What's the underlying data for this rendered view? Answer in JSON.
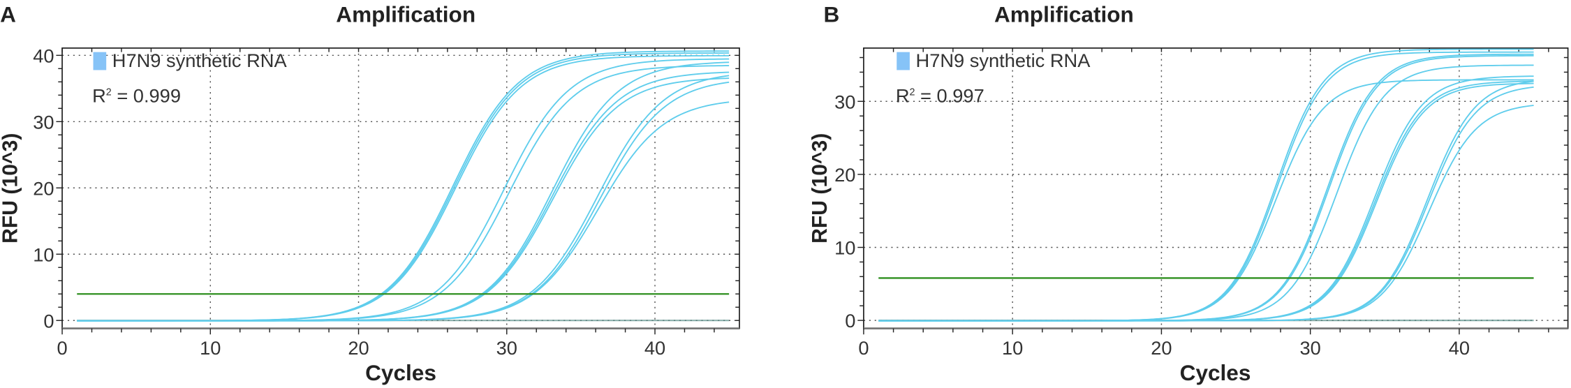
{
  "colors": {
    "curve": "#5fcdec",
    "threshold": "#2f8f1f",
    "legend_swatch": "#86c3f7",
    "baseline": "#5a8f8a",
    "grid": "#555555"
  },
  "chart_data": [
    {
      "type": "line",
      "panel_label": "A",
      "title": "Amplification",
      "xlabel": "Cycles",
      "ylabel": "RFU (10^3)",
      "xlim": [
        0,
        45.7
      ],
      "ylim": [
        -1.2,
        41.1
      ],
      "xticks": [
        0,
        10,
        20,
        30,
        40
      ],
      "yticks": [
        0,
        10,
        20,
        30,
        40
      ],
      "grid": true,
      "legend": {
        "label": "H7N9 synthetic RNA",
        "placement": "top-left"
      },
      "annotation": {
        "prefix": "R",
        "sup": "2",
        "text": " = 0.999"
      },
      "threshold": 4.0,
      "cycles": [
        1,
        45
      ],
      "series": [
        {
          "ct": 21.5,
          "end_rfu": 40.7
        },
        {
          "ct": 21.6,
          "end_rfu": 40.4
        },
        {
          "ct": 21.7,
          "end_rfu": 40.0
        },
        {
          "ct": 25.0,
          "end_rfu": 39.5
        },
        {
          "ct": 25.4,
          "end_rfu": 38.5
        },
        {
          "ct": 28.3,
          "end_rfu": 39.0
        },
        {
          "ct": 28.4,
          "end_rfu": 37.5
        },
        {
          "ct": 28.5,
          "end_rfu": 36.6
        },
        {
          "ct": 31.5,
          "end_rfu": 37.0
        },
        {
          "ct": 31.7,
          "end_rfu": 36.0
        },
        {
          "ct": 31.8,
          "end_rfu": 33.0
        }
      ]
    },
    {
      "type": "line",
      "panel_label": "B",
      "title": "Amplification",
      "xlabel": "Cycles",
      "ylabel": "RFU (10^3)",
      "xlim": [
        0,
        47.3
      ],
      "ylim": [
        -1.1,
        37.3
      ],
      "xticks": [
        0,
        10,
        20,
        30,
        40
      ],
      "yticks": [
        0,
        10,
        20,
        30
      ],
      "grid": true,
      "legend": {
        "label": "H7N9 synthetic RNA",
        "placement": "top-left"
      },
      "annotation": {
        "prefix": "R",
        "sup": "2",
        "text": " = 0.997"
      },
      "threshold": 5.8,
      "cycles": [
        1,
        45
      ],
      "series": [
        {
          "ct": 25.0,
          "end_rfu": 37.2
        },
        {
          "ct": 25.1,
          "end_rfu": 36.8
        },
        {
          "ct": 25.2,
          "end_rfu": 33.0
        },
        {
          "ct": 28.5,
          "end_rfu": 36.5
        },
        {
          "ct": 28.6,
          "end_rfu": 36.3
        },
        {
          "ct": 29.2,
          "end_rfu": 35.0
        },
        {
          "ct": 31.8,
          "end_rfu": 33.5
        },
        {
          "ct": 31.9,
          "end_rfu": 32.8
        },
        {
          "ct": 32.0,
          "end_rfu": 32.5
        },
        {
          "ct": 35.4,
          "end_rfu": 32.8
        },
        {
          "ct": 35.5,
          "end_rfu": 32.0
        },
        {
          "ct": 35.7,
          "end_rfu": 29.5
        }
      ]
    }
  ]
}
